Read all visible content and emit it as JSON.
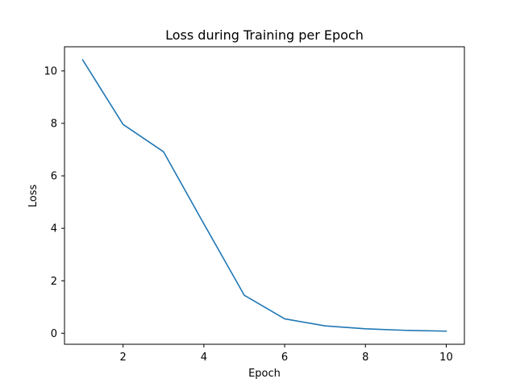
{
  "chart_data": {
    "type": "line",
    "title": "Loss during Training per Epoch",
    "xlabel": "Epoch",
    "ylabel": "Loss",
    "xlim": [
      0.55,
      10.45
    ],
    "ylim": [
      -0.42,
      10.92
    ],
    "x_ticks": [
      2,
      4,
      6,
      8,
      10
    ],
    "y_ticks": [
      0,
      2,
      4,
      6,
      8,
      10
    ],
    "x_tick_labels": [
      "2",
      "4",
      "6",
      "8",
      "10"
    ],
    "y_tick_labels": [
      "0",
      "2",
      "4",
      "6",
      "8",
      "10"
    ],
    "grid": false,
    "series": [
      {
        "color": "#1f77b4",
        "x": [
          1,
          2,
          3,
          4,
          5,
          6,
          7,
          8,
          9,
          10
        ],
        "y": [
          10.42,
          7.96,
          6.92,
          4.17,
          1.45,
          0.55,
          0.28,
          0.17,
          0.11,
          0.08
        ]
      }
    ]
  }
}
